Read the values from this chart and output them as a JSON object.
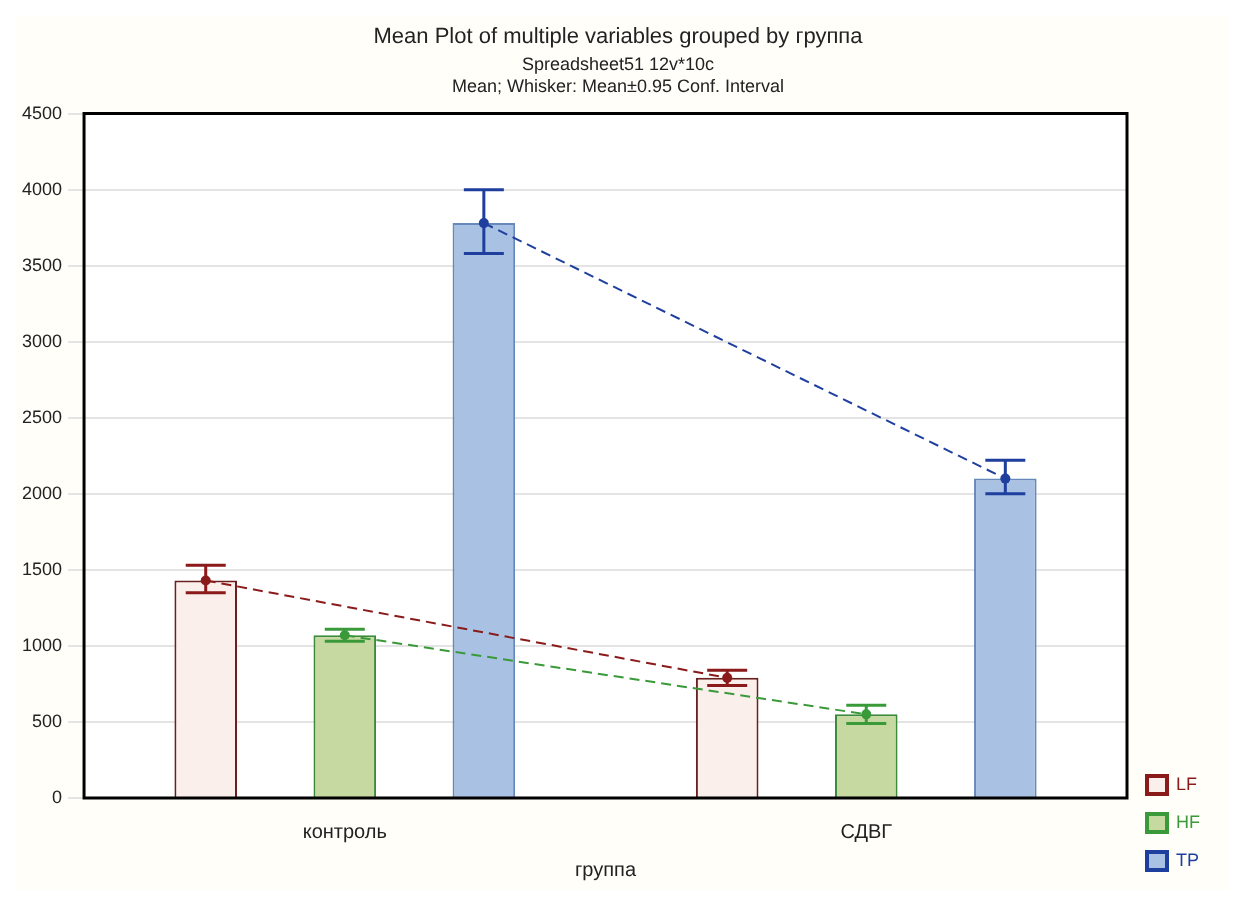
{
  "chart_data": {
    "type": "bar",
    "title": "Mean Plot of multiple variables grouped by группа",
    "subtitle": "Spreadsheet51 12v*10c\nMean; Whisker: Mean±0.95 Conf. Interval",
    "xlabel": "группа",
    "categories": [
      "контроль",
      "СДВГ"
    ],
    "series": [
      {
        "name": "LF",
        "color": "#fbefec",
        "values": [
          1430,
          790
        ],
        "errors": [
          [
            1350,
            1530
          ],
          [
            740,
            840
          ]
        ]
      },
      {
        "name": "HF",
        "color": "#c6d9a0",
        "values": [
          1070,
          550
        ],
        "errors": [
          [
            1030,
            1110
          ],
          [
            490,
            610
          ]
        ]
      },
      {
        "name": "TP",
        "color": "#a9c2e4",
        "values": [
          3780,
          2100
        ],
        "errors": [
          [
            3580,
            4000
          ],
          [
            2000,
            2220
          ]
        ]
      }
    ],
    "ylim": [
      0,
      4500
    ],
    "yticks": [
      0,
      500,
      1000,
      1500,
      2000,
      2500,
      3000,
      3500,
      4000,
      4500
    ],
    "grid": "y",
    "legend": "bottom right",
    "marker": "circle",
    "line_style": "dashed"
  }
}
